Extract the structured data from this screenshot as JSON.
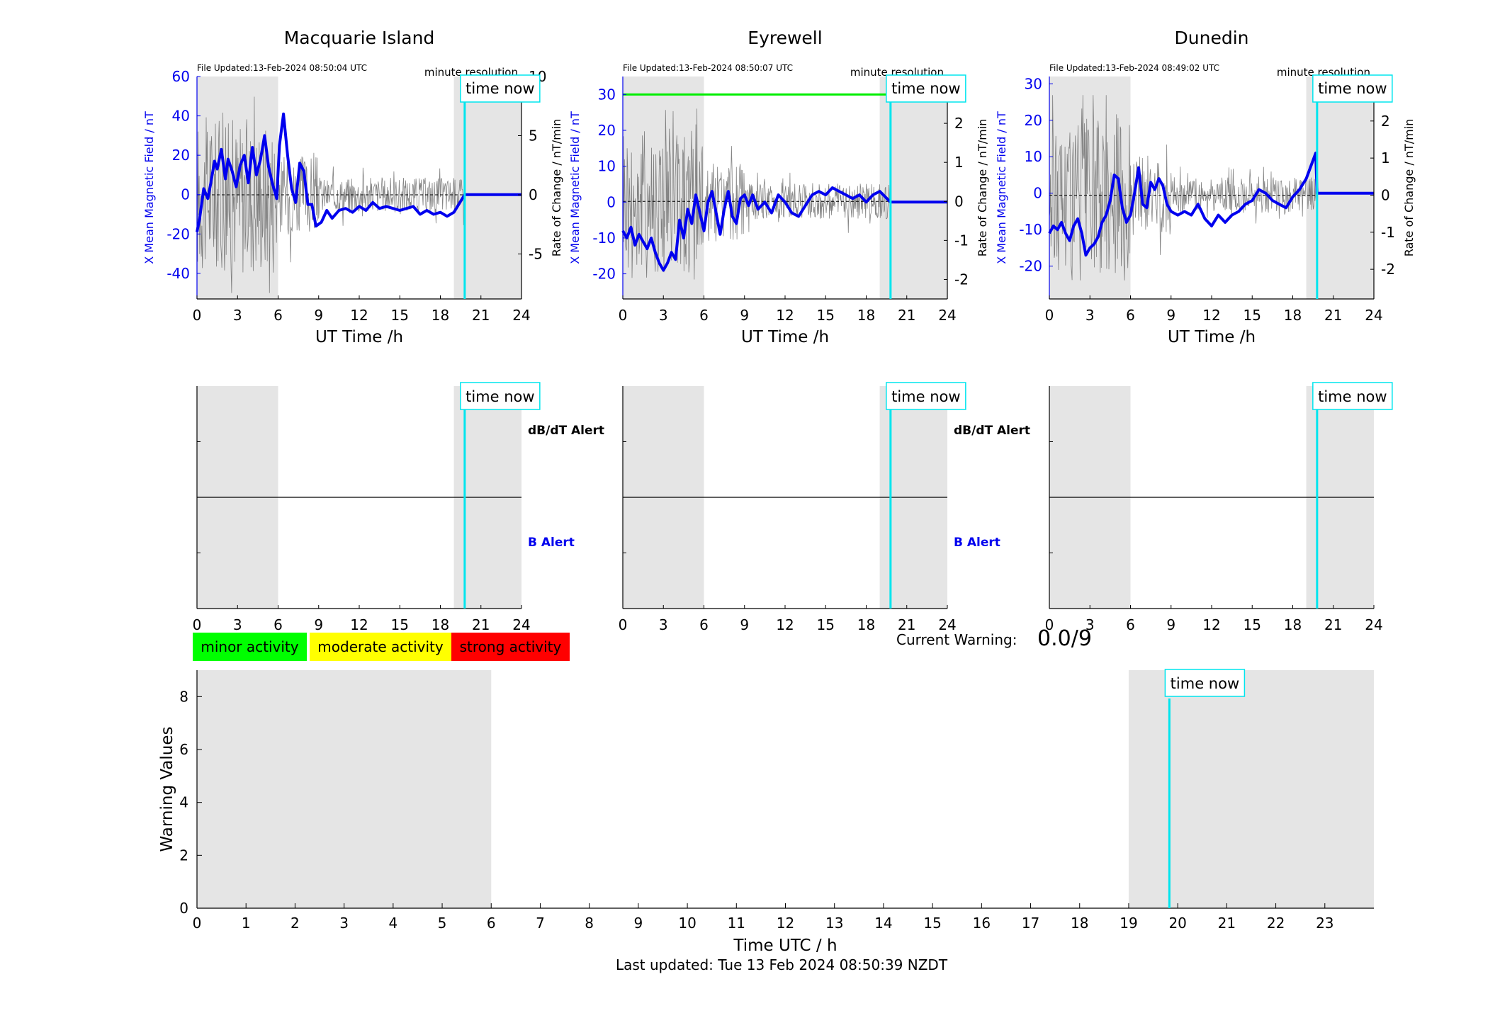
{
  "figure": {
    "title_x_axis": "UT Time /h",
    "time_now_label": "time now",
    "minute_resolution_label": "minute resolution",
    "left_ylabel": "X Mean Magnetic Field / nT",
    "right_ylabel": "Rate of Change / nT/min",
    "alert_db_label": "dB/dT Alert",
    "alert_b_label": "B Alert",
    "legend": [
      "minor activity",
      "moderate activity",
      "strong activity"
    ],
    "current_warning_label": "Current Warning:",
    "current_warning_value": "0.0/9",
    "warning_ylabel": "Warning Values",
    "warning_xlabel": "Time UTC / h",
    "last_updated": "Last updated: Tue 13 Feb 2024 08:50:39 NZDT"
  },
  "colors": {
    "field": "#0000ee",
    "rate": "#666666",
    "time_now": "#00e5ee",
    "shade": "#e5e5e5",
    "threshold": "#00ee00",
    "minor": "#00ff00",
    "moderate": "#ffff00",
    "strong": "#ff0000"
  },
  "chart_data": [
    {
      "type": "line",
      "title": "Macquarie Island",
      "file_updated": "File Updated:13-Feb-2024 08:50:04 UTC",
      "xlim": [
        0,
        24
      ],
      "xticks": [
        0,
        3,
        6,
        9,
        12,
        15,
        18,
        21,
        24
      ],
      "ylim_left": [
        -53,
        60
      ],
      "yticks_left": [
        -40,
        -20,
        0,
        20,
        40,
        60
      ],
      "ylim_right": [
        -8.8,
        10
      ],
      "yticks_right": [
        -5,
        0,
        5,
        10
      ],
      "shaded_ranges": [
        [
          0,
          6
        ],
        [
          19,
          24
        ]
      ],
      "time_now": 19.8,
      "threshold": null,
      "series": [
        {
          "x": [
            0,
            0.2,
            0.5,
            0.8,
            1,
            1.3,
            1.5,
            1.8,
            2.1,
            2.3,
            2.6,
            2.9,
            3.2,
            3.5,
            3.8,
            4.1,
            4.4,
            4.7,
            5,
            5.3,
            5.6,
            5.9,
            6.1,
            6.4,
            6.7,
            7,
            7.3,
            7.6,
            7.9,
            8.2,
            8.5,
            8.8,
            9.2,
            9.6,
            10,
            10.5,
            11,
            11.5,
            12,
            12.5,
            13,
            13.5,
            14,
            14.5,
            15,
            15.5,
            16,
            16.5,
            17,
            17.5,
            18,
            18.5,
            19,
            19.8,
            20.5,
            22,
            24
          ],
          "values": [
            -19,
            -12,
            3,
            -2,
            5,
            17,
            13,
            23,
            8,
            18,
            12,
            4,
            15,
            20,
            6,
            24,
            10,
            18,
            30,
            14,
            5,
            -2,
            25,
            41,
            20,
            3,
            -4,
            16,
            12,
            -5,
            -5,
            -16,
            -14,
            -8,
            -12,
            -8,
            -7,
            -9,
            -6,
            -8,
            -4,
            -7,
            -6,
            -7,
            -8,
            -7,
            -6,
            -10,
            -8,
            -10,
            -9,
            -11,
            -9,
            0,
            0,
            0,
            0
          ]
        }
      ]
    },
    {
      "type": "line",
      "title": "Eyrewell",
      "file_updated": "File Updated:13-Feb-2024 08:50:07 UTC",
      "xlim": [
        0,
        24
      ],
      "xticks": [
        0,
        3,
        6,
        9,
        12,
        15,
        18,
        21,
        24
      ],
      "ylim_left": [
        -27,
        35
      ],
      "yticks_left": [
        -20,
        -10,
        0,
        10,
        20,
        30
      ],
      "ylim_right": [
        -2.5,
        3.2
      ],
      "yticks_right": [
        -2,
        -1,
        0,
        1,
        2,
        3
      ],
      "shaded_ranges": [
        [
          0,
          6
        ],
        [
          19,
          24
        ]
      ],
      "time_now": 19.8,
      "threshold": 30,
      "series": [
        {
          "x": [
            0,
            0.3,
            0.6,
            0.9,
            1.2,
            1.5,
            1.8,
            2.1,
            2.4,
            2.7,
            3,
            3.3,
            3.6,
            3.9,
            4.2,
            4.5,
            4.8,
            5.1,
            5.4,
            5.7,
            6,
            6.3,
            6.6,
            6.9,
            7.2,
            7.5,
            7.8,
            8.1,
            8.4,
            8.7,
            9,
            9.3,
            9.6,
            10,
            10.5,
            11,
            11.5,
            12,
            12.5,
            13,
            13.5,
            14,
            14.5,
            15,
            15.5,
            16,
            16.5,
            17,
            17.5,
            18,
            18.5,
            19,
            19.8,
            20.5,
            22,
            24
          ],
          "values": [
            -8,
            -10,
            -7,
            -12,
            -9,
            -11,
            -13,
            -10,
            -14,
            -17,
            -19,
            -17,
            -14,
            -16,
            -5,
            -10,
            -2,
            -6,
            2,
            -3,
            -8,
            0,
            3,
            -3,
            -9,
            -2,
            3,
            -4,
            -6,
            1,
            2,
            -1,
            2,
            -2,
            0,
            -3,
            2,
            0,
            -3,
            -4,
            -1,
            2,
            3,
            2,
            4,
            3,
            2,
            1,
            2,
            0,
            2,
            3,
            0,
            0,
            0,
            0
          ]
        }
      ]
    },
    {
      "type": "line",
      "title": "Dunedin",
      "file_updated": "File Updated:13-Feb-2024 08:49:02 UTC",
      "xlim": [
        0,
        24
      ],
      "xticks": [
        0,
        3,
        6,
        9,
        12,
        15,
        18,
        21,
        24
      ],
      "ylim_left": [
        -29,
        32
      ],
      "yticks_left": [
        -20,
        -10,
        0,
        10,
        20,
        30
      ],
      "ylim_right": [
        -2.8,
        3.2
      ],
      "yticks_right": [
        -2,
        -1,
        0,
        1,
        2,
        3
      ],
      "shaded_ranges": [
        [
          0,
          6
        ],
        [
          19,
          24
        ]
      ],
      "time_now": 19.8,
      "threshold": null,
      "series": [
        {
          "x": [
            0,
            0.3,
            0.6,
            0.9,
            1.2,
            1.5,
            1.8,
            2.1,
            2.4,
            2.7,
            3,
            3.3,
            3.6,
            3.9,
            4.2,
            4.5,
            4.8,
            5.1,
            5.4,
            5.7,
            6,
            6.3,
            6.6,
            6.9,
            7.2,
            7.5,
            7.8,
            8.1,
            8.4,
            8.7,
            9,
            9.5,
            10,
            10.5,
            11,
            11.5,
            12,
            12.5,
            13,
            13.5,
            14,
            14.5,
            15,
            15.5,
            16,
            16.5,
            17,
            17.5,
            18,
            18.5,
            19,
            19.4,
            19.7,
            19.8,
            20.5,
            22,
            24
          ],
          "values": [
            -11,
            -9,
            -10,
            -8,
            -11,
            -13,
            -9,
            -7,
            -11,
            -17,
            -15,
            -14,
            -12,
            -8,
            -6,
            -2,
            5,
            4,
            -4,
            -8,
            -6,
            0,
            7,
            -3,
            -4,
            3,
            1,
            4,
            2,
            -3,
            -5,
            -6,
            -5,
            -6,
            -3,
            -7,
            -9,
            -6,
            -8,
            -6,
            -5,
            -3,
            -2,
            1,
            0,
            -2,
            -3,
            -4,
            -1,
            1,
            4,
            8,
            11,
            0,
            0,
            0,
            0
          ]
        }
      ]
    },
    {
      "type": "line",
      "title": "",
      "ylabel": "Warning Values",
      "xlabel": "Time UTC / h",
      "xlim": [
        0,
        24
      ],
      "xticks": [
        0,
        1,
        2,
        3,
        4,
        5,
        6,
        7,
        8,
        9,
        10,
        11,
        12,
        13,
        14,
        15,
        16,
        17,
        18,
        19,
        20,
        21,
        22,
        23
      ],
      "ylim": [
        0,
        9
      ],
      "yticks": [
        0,
        2,
        4,
        6,
        8
      ],
      "shaded_ranges": [
        [
          0,
          6
        ],
        [
          19,
          24
        ]
      ],
      "time_now": 19.83,
      "series": []
    }
  ]
}
